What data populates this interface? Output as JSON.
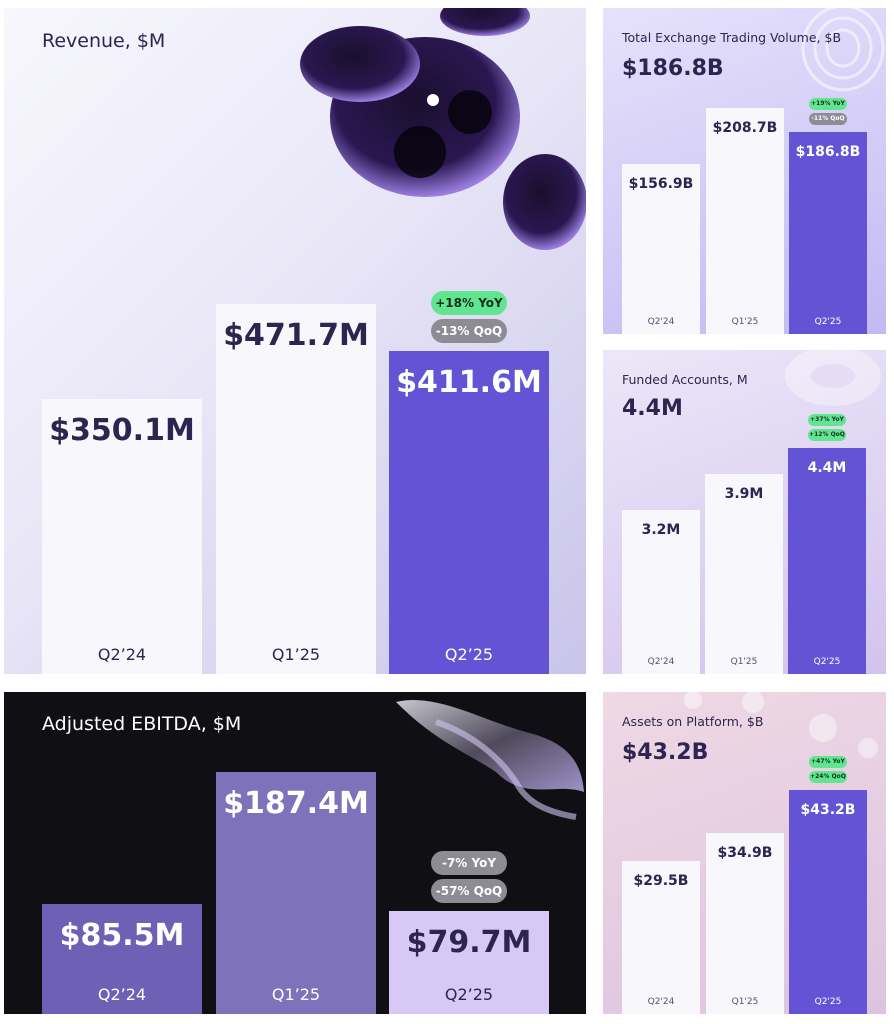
{
  "colors": {
    "bar_light": "#f8f7fc",
    "bar_accent": "#6453d4",
    "ebitda_bar_1": "#6e61b5",
    "ebitda_bar_2": "#7e72ba",
    "ebitda_bar_3": "#d8c8f5",
    "yoy_badge": "#62e591",
    "qoq_badge": "#8c8c95",
    "title_text": "#2d2450"
  },
  "chart_data": [
    {
      "type": "bar",
      "title": "Revenue, $M",
      "categories": [
        "Q2’24",
        "Q1’25",
        "Q2’25"
      ],
      "values": [
        350.1,
        471.7,
        411.6
      ],
      "value_labels": [
        "$350.1M",
        "$471.7M",
        "$411.6M"
      ],
      "badges": [
        "+18% YoY",
        "-13% QoQ"
      ]
    },
    {
      "type": "bar",
      "title": "Adjusted EBITDA, $M",
      "categories": [
        "Q2’24",
        "Q1’25",
        "Q2’25"
      ],
      "values": [
        85.5,
        187.4,
        79.7
      ],
      "value_labels": [
        "$85.5M",
        "$187.4M",
        "$79.7M"
      ],
      "badges": [
        "-7% YoY",
        "-57% QoQ"
      ]
    },
    {
      "type": "bar",
      "title": "Total Exchange Trading Volume, $B",
      "headline": "$186.8B",
      "categories": [
        "Q2'24",
        "Q1'25",
        "Q2'25"
      ],
      "values": [
        156.9,
        208.7,
        186.8
      ],
      "value_labels": [
        "$156.9B",
        "$208.7B",
        "$186.8B"
      ],
      "badges": [
        "+19% YoY",
        "-11% QoQ"
      ]
    },
    {
      "type": "bar",
      "title": "Funded Accounts, M",
      "headline": "4.4M",
      "categories": [
        "Q2'24",
        "Q1'25",
        "Q2'25"
      ],
      "values": [
        3.2,
        3.9,
        4.4
      ],
      "value_labels": [
        "3.2M",
        "3.9M",
        "4.4M"
      ],
      "badges": [
        "+37% YoY",
        "+12% QoQ"
      ]
    },
    {
      "type": "bar",
      "title": "Assets on Platform, $B",
      "headline": "$43.2B",
      "categories": [
        "Q2'24",
        "Q1'25",
        "Q2'25"
      ],
      "values": [
        29.5,
        34.9,
        43.2
      ],
      "value_labels": [
        "$29.5B",
        "$34.9B",
        "$43.2B"
      ],
      "badges": [
        "+47% YoY",
        "+24% QoQ"
      ]
    }
  ]
}
